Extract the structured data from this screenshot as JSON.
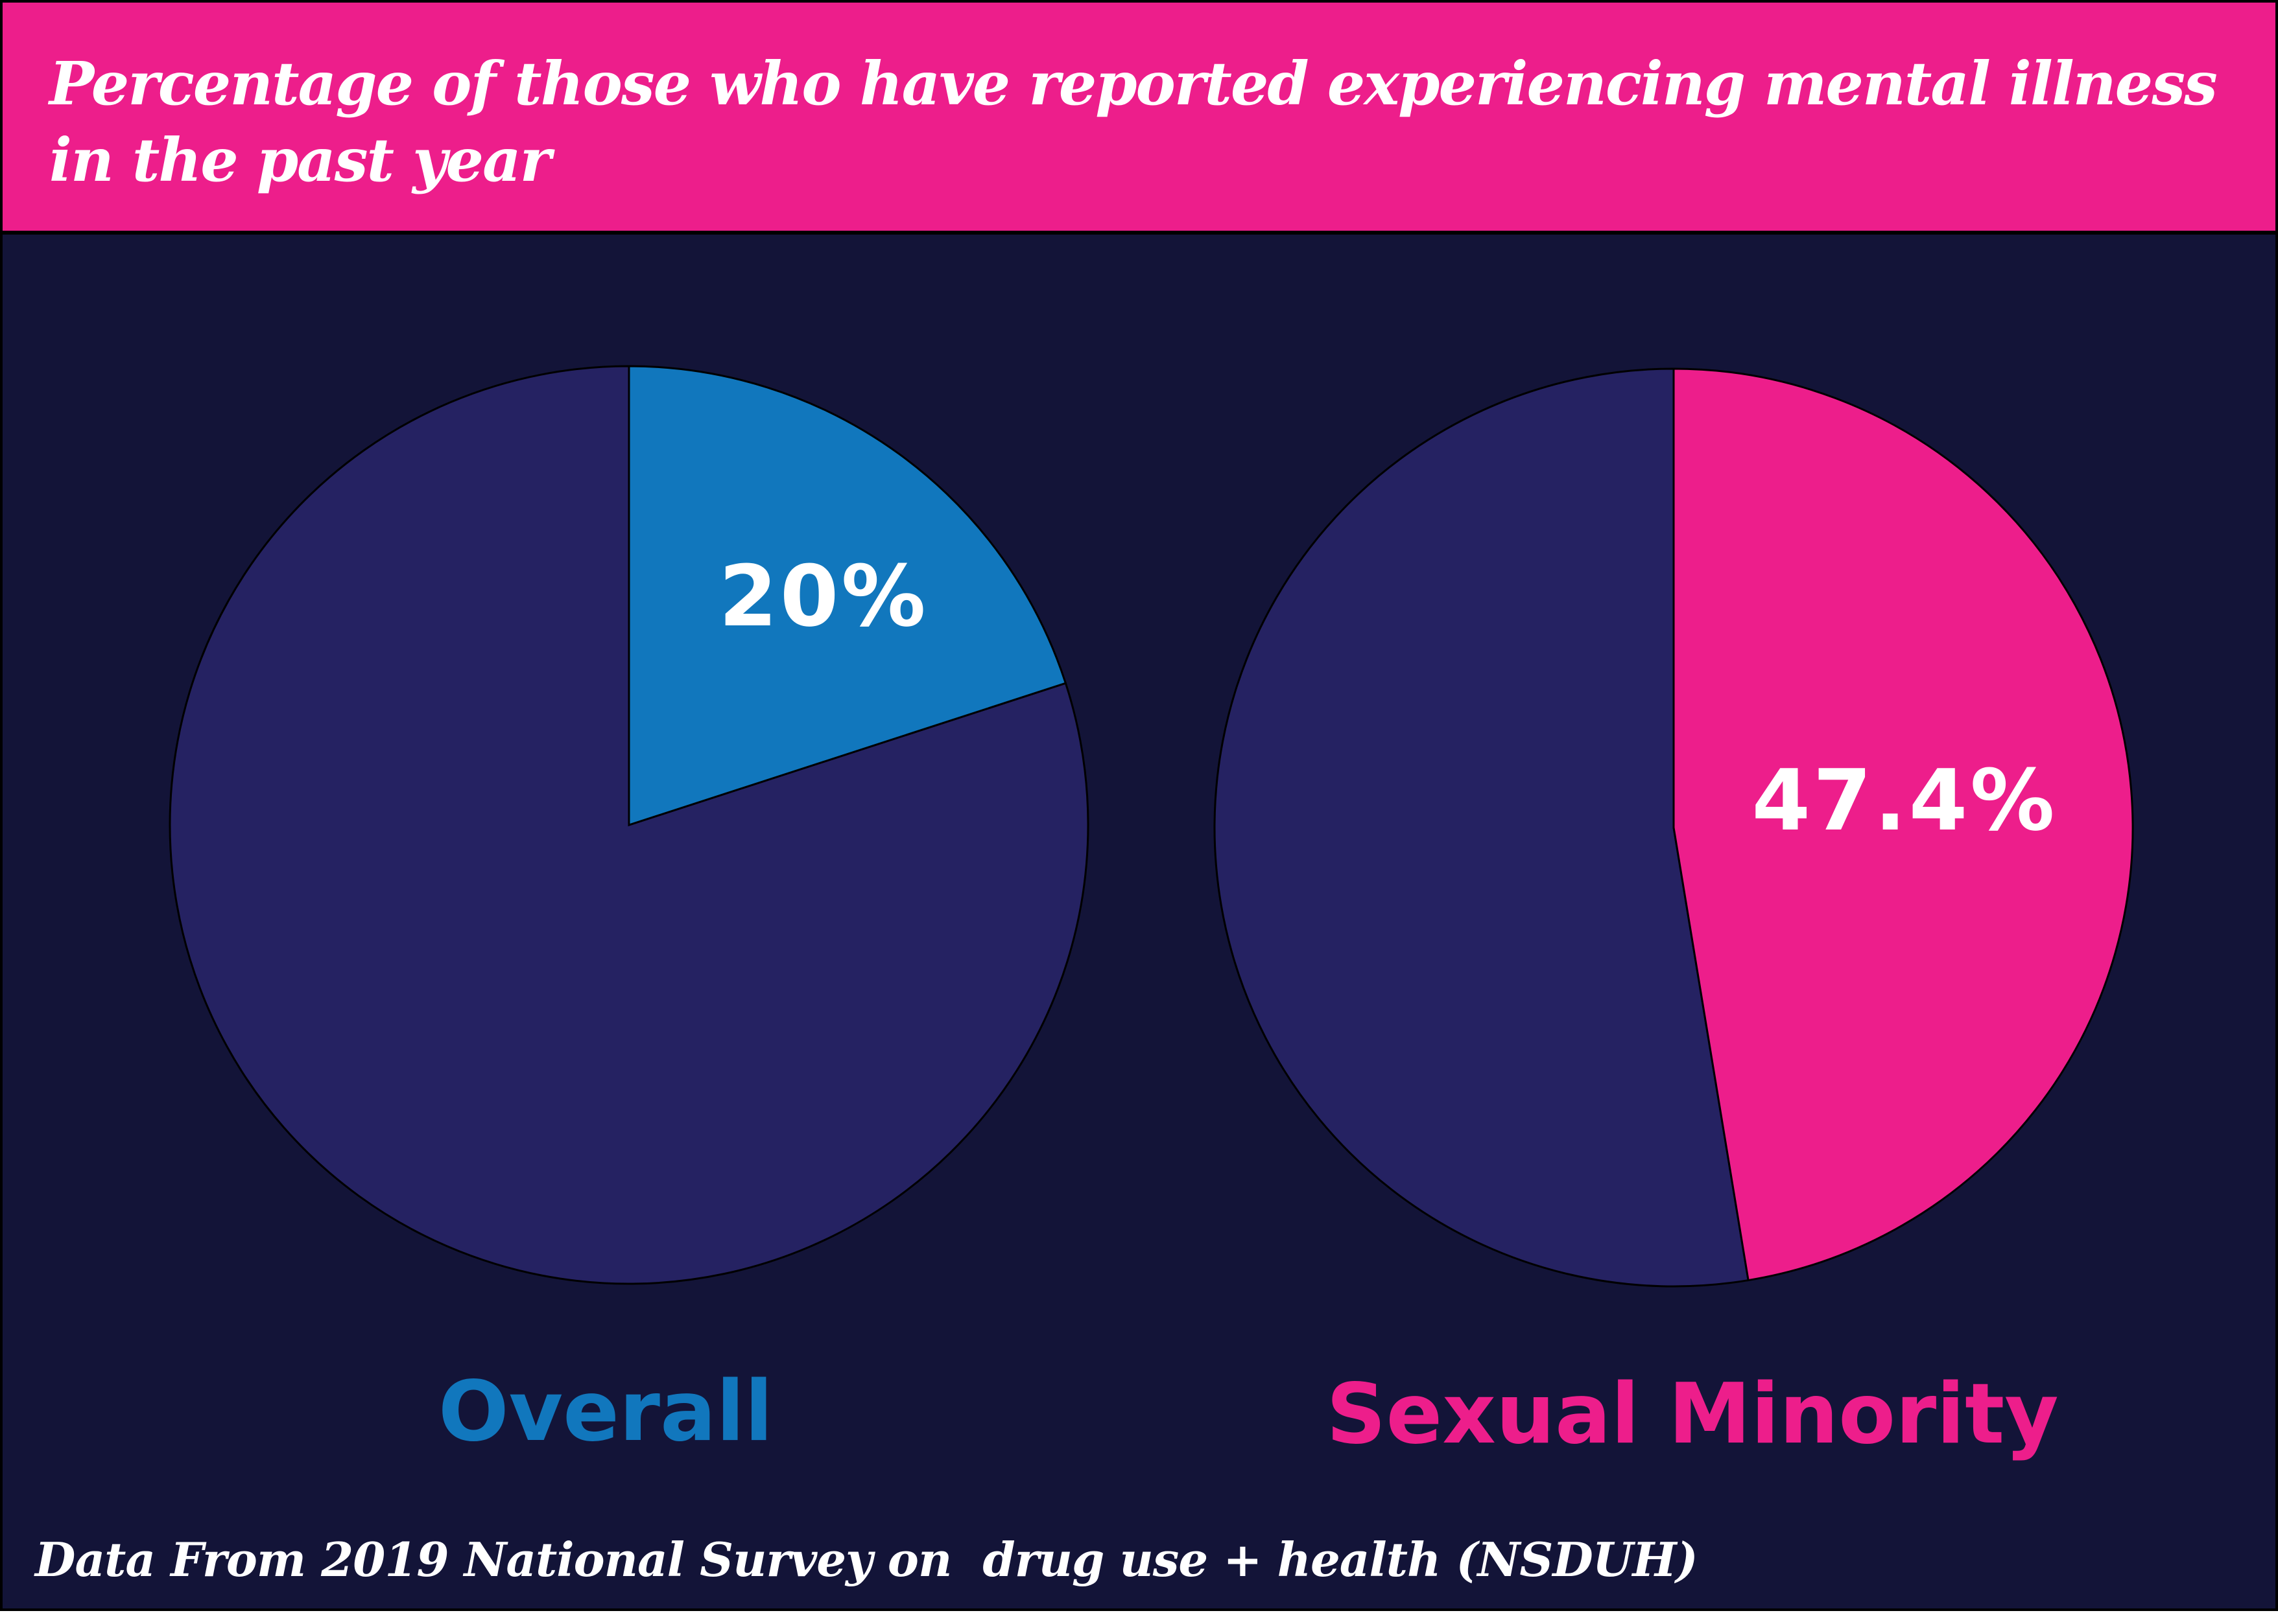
{
  "chart_data": [
    {
      "type": "pie",
      "title": "Percentage of those who have reported experiencing mental illness in the past year",
      "label": "Overall",
      "value": 20,
      "value_label": "20%",
      "start": "12 o'clock",
      "direction": "clockwise",
      "highlight_color": "#1177bd",
      "rest_color": "#252262",
      "label_color": "#1177bd"
    },
    {
      "type": "pie",
      "label": "Sexual Minority",
      "value": 47.4,
      "value_label": "47.4%",
      "start": "12 o'clock",
      "direction": "clockwise",
      "highlight_color": "#ed1e8b",
      "rest_color": "#252262",
      "label_color": "#ed1e8b"
    }
  ],
  "title": "Percentage of those who have reported experiencing mental illness in the past year",
  "footer": "Data From 2019 National Survey on  drug use + health (NSDUH)",
  "colors": {
    "header_bg": "#ed1e8b",
    "background": "#131438"
  }
}
